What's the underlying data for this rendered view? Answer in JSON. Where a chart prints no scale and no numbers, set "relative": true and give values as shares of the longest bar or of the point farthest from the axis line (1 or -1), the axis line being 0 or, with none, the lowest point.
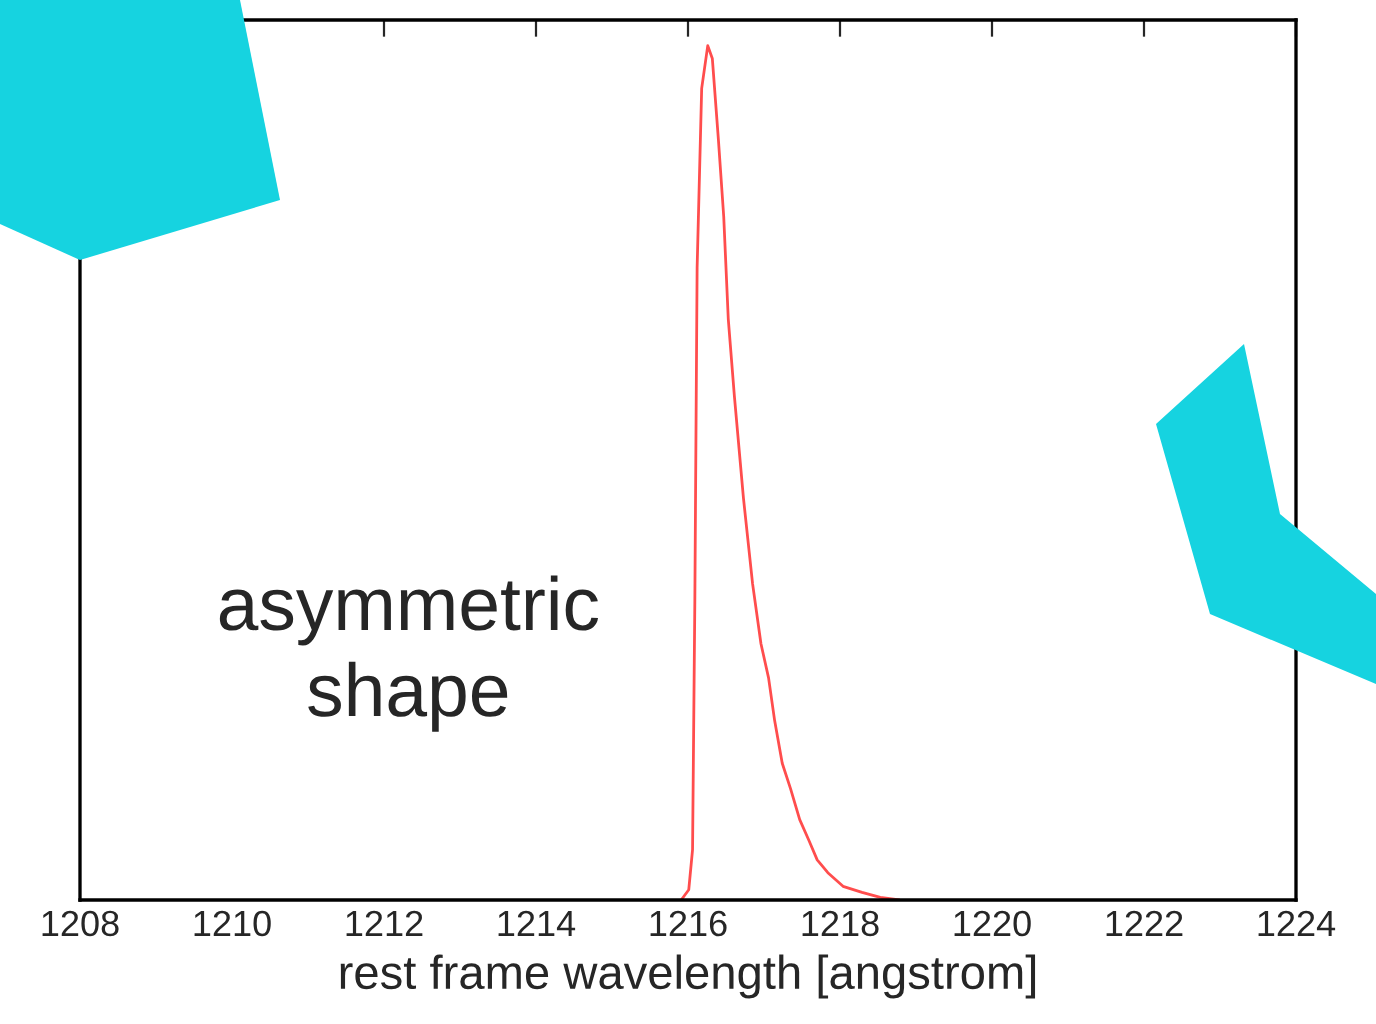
{
  "chart_data": {
    "type": "line",
    "xlabel": "rest frame wavelength [angstrom]",
    "relative": true,
    "xlim": [
      1208,
      1224
    ],
    "xticks": [
      1208,
      1210,
      1212,
      1214,
      1216,
      1218,
      1220,
      1222,
      1224
    ],
    "series": [
      {
        "color": "#ff4d4d",
        "x": [
          1215.91,
          1216.01,
          1216.06,
          1216.09,
          1216.12,
          1216.18,
          1216.26,
          1216.32,
          1216.4,
          1216.47,
          1216.53,
          1216.61,
          1216.73,
          1216.85,
          1216.96,
          1217.06,
          1217.14,
          1217.24,
          1217.35,
          1217.47,
          1217.59,
          1217.7,
          1217.84,
          1218.04,
          1218.29,
          1218.53,
          1218.78
        ],
        "values": [
          0,
          0.012,
          0.059,
          0.35,
          0.74,
          0.95,
          1.0,
          0.985,
          0.89,
          0.8,
          0.68,
          0.59,
          0.47,
          0.37,
          0.3,
          0.26,
          0.21,
          0.16,
          0.13,
          0.094,
          0.07,
          0.047,
          0.032,
          0.016,
          0.009,
          0.003,
          0
        ]
      }
    ],
    "annotations": [
      "asymmetric\nshape"
    ],
    "grid": false,
    "legend": false,
    "line_style": "solid",
    "marker": "none"
  }
}
